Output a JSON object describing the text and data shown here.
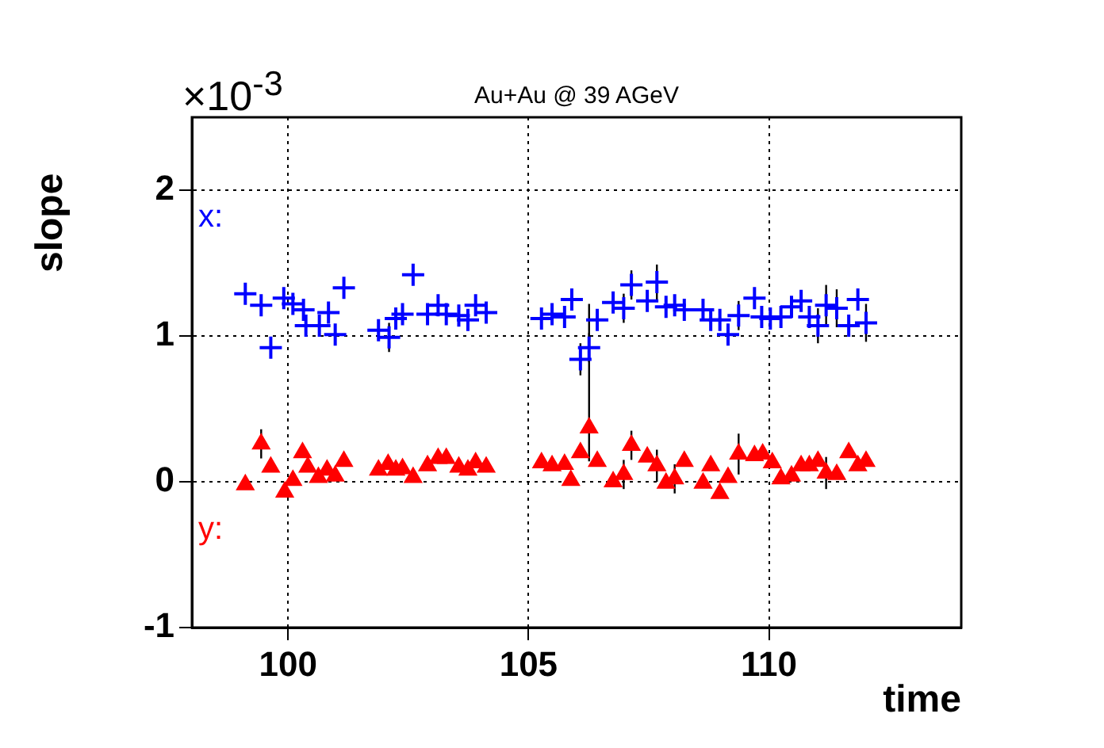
{
  "chart_data": {
    "type": "scatter",
    "title": "Au+Au @ 39 AGeV",
    "xlabel": "time",
    "ylabel": "slope",
    "annotations": [
      "×10$^{-3}$"
    ],
    "xlim": [
      98,
      114
    ],
    "xticks": [
      100,
      105,
      110
    ],
    "ylim": [
      -1,
      2.5
    ],
    "yticks": [
      -1,
      0,
      1,
      2
    ],
    "grid": true,
    "legend": false,
    "series": [
      {
        "name": "x:",
        "color": "#0000ff",
        "marker": "cross",
        "x": [
          99.11,
          99.44,
          99.64,
          99.91,
          100.1,
          100.32,
          100.37,
          100.65,
          100.84,
          100.98,
          101.16,
          101.88,
          102.1,
          102.24,
          102.38,
          102.6,
          102.9,
          103.12,
          103.29,
          103.55,
          103.74,
          103.9,
          104.12,
          105.27,
          105.49,
          105.75,
          105.9,
          106.08,
          106.26,
          106.43,
          106.76,
          106.98,
          107.14,
          107.47,
          107.67,
          107.86,
          108.04,
          108.24,
          108.63,
          108.79,
          108.98,
          109.15,
          109.37,
          109.7,
          109.85,
          110.03,
          110.25,
          110.47,
          110.67,
          110.84,
          111.02,
          111.19,
          111.41,
          111.66,
          111.85,
          112.02
        ],
        "values": [
          1.29,
          1.21,
          0.92,
          1.26,
          1.22,
          1.18,
          1.07,
          1.07,
          1.16,
          1.01,
          1.33,
          1.04,
          0.99,
          1.12,
          1.15,
          1.42,
          1.15,
          1.21,
          1.15,
          1.14,
          1.11,
          1.21,
          1.16,
          1.12,
          1.15,
          1.13,
          1.25,
          0.84,
          0.92,
          1.11,
          1.23,
          1.19,
          1.35,
          1.24,
          1.37,
          1.2,
          1.21,
          1.18,
          1.18,
          1.11,
          1.11,
          1.01,
          1.14,
          1.26,
          1.13,
          1.12,
          1.13,
          1.2,
          1.24,
          1.13,
          1.07,
          1.21,
          1.19,
          1.07,
          1.25,
          1.09
        ],
        "errors": [
          null,
          null,
          null,
          null,
          null,
          null,
          null,
          null,
          null,
          null,
          null,
          null,
          0.1,
          null,
          null,
          null,
          null,
          null,
          null,
          null,
          null,
          null,
          null,
          null,
          null,
          null,
          null,
          0.11,
          0.1,
          null,
          null,
          0.1,
          0.1,
          null,
          0.12,
          null,
          null,
          null,
          null,
          null,
          null,
          null,
          0.1,
          null,
          null,
          null,
          null,
          null,
          null,
          null,
          0.12,
          0.14,
          0.13,
          null,
          null,
          0.13
        ]
      },
      {
        "name": "y:",
        "color": "#ff0000",
        "marker": "triangle",
        "x": [
          99.11,
          99.44,
          99.64,
          99.93,
          100.1,
          100.3,
          100.41,
          100.63,
          100.81,
          100.98,
          101.16,
          101.88,
          102.08,
          102.24,
          102.38,
          102.6,
          102.9,
          103.12,
          103.29,
          103.55,
          103.74,
          103.9,
          104.12,
          105.27,
          105.49,
          105.75,
          105.88,
          106.08,
          106.26,
          106.43,
          106.76,
          106.98,
          107.14,
          107.47,
          107.67,
          107.86,
          108.04,
          108.24,
          108.63,
          108.79,
          108.98,
          109.15,
          109.37,
          109.7,
          109.87,
          110.07,
          110.25,
          110.47,
          110.67,
          110.84,
          111.02,
          111.19,
          111.41,
          111.66,
          111.85,
          112.02
        ],
        "values": [
          -0.02,
          0.26,
          0.1,
          -0.07,
          0.01,
          0.2,
          0.1,
          0.03,
          0.08,
          0.04,
          0.14,
          0.08,
          0.12,
          0.08,
          0.09,
          0.03,
          0.11,
          0.16,
          0.16,
          0.1,
          0.08,
          0.13,
          0.1,
          0.13,
          0.11,
          0.12,
          0.01,
          0.2,
          0.37,
          0.14,
          0.0,
          0.05,
          0.25,
          0.17,
          0.11,
          -0.01,
          0.02,
          0.14,
          -0.01,
          0.11,
          -0.08,
          0.03,
          0.19,
          0.18,
          0.19,
          0.13,
          0.02,
          0.04,
          0.11,
          0.11,
          0.14,
          0.06,
          0.05,
          0.2,
          0.11,
          0.14
        ],
        "errors": [
          null,
          0.1,
          null,
          null,
          null,
          null,
          null,
          null,
          null,
          null,
          null,
          null,
          null,
          null,
          null,
          null,
          null,
          null,
          null,
          null,
          null,
          null,
          null,
          null,
          null,
          null,
          null,
          null,
          [
            0.14,
            1.22
          ],
          null,
          null,
          0.1,
          0.1,
          null,
          0.11,
          null,
          0.1,
          null,
          null,
          null,
          null,
          null,
          0.14,
          null,
          null,
          null,
          null,
          null,
          null,
          null,
          null,
          0.11,
          null,
          null,
          null,
          null
        ]
      }
    ]
  }
}
